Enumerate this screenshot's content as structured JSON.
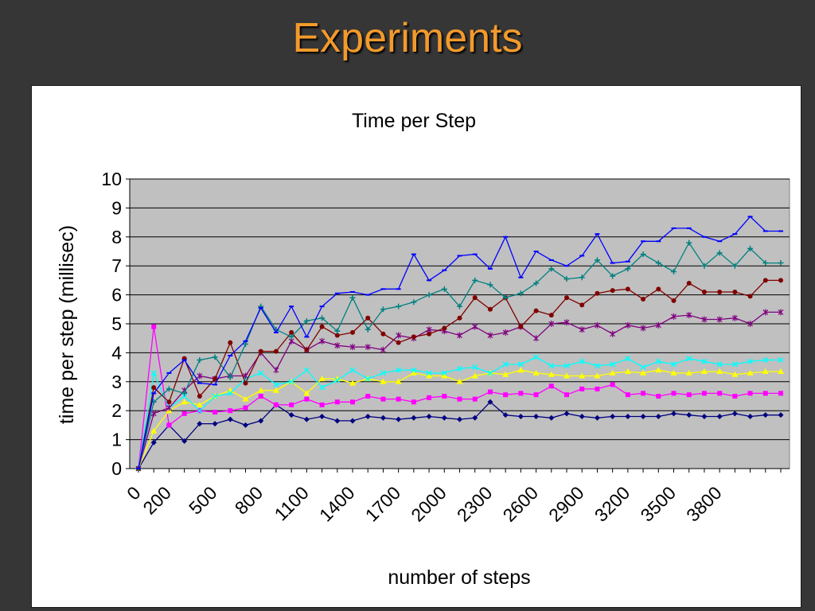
{
  "slide": {
    "title": "Experiments"
  },
  "chart_data": {
    "type": "line",
    "title": "Time per Step",
    "xlabel": "number of steps",
    "ylabel": "time per step (millisec)",
    "ylim": [
      0,
      10
    ],
    "yticks": [
      0,
      1,
      2,
      3,
      4,
      5,
      6,
      7,
      8,
      9,
      10
    ],
    "grid": true,
    "plot_background": "#C0C0C0",
    "x": [
      0,
      100,
      200,
      300,
      400,
      500,
      600,
      700,
      800,
      900,
      1000,
      1100,
      1200,
      1300,
      1400,
      1500,
      1600,
      1700,
      1800,
      1900,
      2000,
      2100,
      2200,
      2300,
      2400,
      2500,
      2600,
      2700,
      2800,
      2900,
      3000,
      3100,
      3200,
      3300,
      3400,
      3500,
      3600,
      3700,
      3800,
      3900,
      4000,
      4100,
      4200
    ],
    "xtick_labels": [
      "0",
      "200",
      "500",
      "800",
      "1100",
      "1400",
      "1700",
      "2000",
      "2300",
      "2600",
      "2900",
      "3200",
      "3500",
      "3800"
    ],
    "xtick_positions": [
      0,
      200,
      500,
      800,
      1100,
      1400,
      1700,
      2000,
      2300,
      2600,
      2900,
      3200,
      3500,
      3800
    ],
    "series": [
      {
        "color": "#000080",
        "marker": "diamond",
        "values": [
          0,
          0.9,
          1.5,
          0.95,
          1.55,
          1.55,
          1.7,
          1.5,
          1.65,
          2.2,
          1.85,
          1.7,
          1.8,
          1.65,
          1.65,
          1.8,
          1.75,
          1.7,
          1.75,
          1.8,
          1.75,
          1.7,
          1.75,
          2.3,
          1.85,
          1.8,
          1.8,
          1.75,
          1.9,
          1.8,
          1.75,
          1.8,
          1.8,
          1.8,
          1.8,
          1.9,
          1.85,
          1.8,
          1.8,
          1.9,
          1.8,
          1.85,
          1.85
        ]
      },
      {
        "color": "#FF00FF",
        "marker": "square",
        "values": [
          0,
          4.9,
          1.5,
          1.9,
          2.0,
          1.95,
          2.0,
          2.1,
          2.5,
          2.2,
          2.2,
          2.4,
          2.2,
          2.3,
          2.3,
          2.5,
          2.4,
          2.4,
          2.3,
          2.45,
          2.5,
          2.4,
          2.4,
          2.65,
          2.55,
          2.6,
          2.55,
          2.85,
          2.55,
          2.75,
          2.75,
          2.9,
          2.55,
          2.6,
          2.5,
          2.6,
          2.55,
          2.6,
          2.6,
          2.5,
          2.6,
          2.6,
          2.6
        ]
      },
      {
        "color": "#FFFF00",
        "marker": "triangle",
        "values": [
          0,
          1.3,
          2.0,
          2.3,
          2.2,
          2.5,
          2.7,
          2.4,
          2.7,
          2.7,
          3.0,
          2.6,
          3.1,
          3.1,
          2.95,
          3.1,
          3.0,
          3.0,
          3.3,
          3.2,
          3.2,
          3.0,
          3.2,
          3.3,
          3.25,
          3.4,
          3.3,
          3.25,
          3.2,
          3.2,
          3.2,
          3.3,
          3.35,
          3.3,
          3.4,
          3.3,
          3.3,
          3.35,
          3.35,
          3.25,
          3.3,
          3.35,
          3.35
        ]
      },
      {
        "color": "#00FFFF",
        "marker": "x",
        "values": [
          0,
          3.3,
          2.1,
          2.5,
          2.0,
          2.5,
          2.6,
          3.1,
          3.3,
          2.9,
          3.0,
          3.4,
          2.8,
          3.05,
          3.4,
          3.1,
          3.3,
          3.4,
          3.4,
          3.3,
          3.3,
          3.45,
          3.5,
          3.3,
          3.6,
          3.6,
          3.85,
          3.55,
          3.55,
          3.7,
          3.55,
          3.6,
          3.8,
          3.5,
          3.7,
          3.6,
          3.8,
          3.7,
          3.6,
          3.6,
          3.7,
          3.75,
          3.75
        ]
      },
      {
        "color": "#800080",
        "marker": "star",
        "values": [
          0,
          1.9,
          2.1,
          2.7,
          3.2,
          3.1,
          3.2,
          3.2,
          4.0,
          3.4,
          4.4,
          4.1,
          4.4,
          4.25,
          4.2,
          4.2,
          4.1,
          4.6,
          4.5,
          4.8,
          4.75,
          4.6,
          4.9,
          4.6,
          4.7,
          4.9,
          4.5,
          5.0,
          5.05,
          4.8,
          4.95,
          4.65,
          4.95,
          4.85,
          4.95,
          5.25,
          5.3,
          5.15,
          5.15,
          5.2,
          5.0,
          5.4,
          5.4
        ]
      },
      {
        "color": "#800000",
        "marker": "circle",
        "values": [
          0,
          2.8,
          2.3,
          3.8,
          2.5,
          3.1,
          4.35,
          2.95,
          4.05,
          4.05,
          4.7,
          4.1,
          4.9,
          4.6,
          4.7,
          5.2,
          4.65,
          4.35,
          4.55,
          4.65,
          4.85,
          5.2,
          5.9,
          5.5,
          5.9,
          4.9,
          5.45,
          5.3,
          5.9,
          5.65,
          6.05,
          6.15,
          6.2,
          5.85,
          6.2,
          5.8,
          6.4,
          6.1,
          6.1,
          6.1,
          5.95,
          6.5,
          6.5
        ]
      },
      {
        "color": "#008080",
        "marker": "plus",
        "values": [
          0,
          2.3,
          2.75,
          2.6,
          3.75,
          3.85,
          3.15,
          4.3,
          5.6,
          4.8,
          4.55,
          5.1,
          5.2,
          4.75,
          5.9,
          4.8,
          5.5,
          5.6,
          5.75,
          6.0,
          6.2,
          5.6,
          6.5,
          6.35,
          5.9,
          6.05,
          6.4,
          6.9,
          6.55,
          6.6,
          7.2,
          6.65,
          6.9,
          7.4,
          7.1,
          6.8,
          7.8,
          7.0,
          7.45,
          7.0,
          7.6,
          7.1,
          7.1
        ]
      },
      {
        "color": "#0000FF",
        "marker": "dash",
        "values": [
          0,
          2.6,
          3.3,
          3.75,
          2.95,
          2.9,
          3.9,
          4.4,
          5.55,
          4.7,
          5.6,
          4.55,
          5.6,
          6.05,
          6.1,
          6.0,
          6.2,
          6.2,
          7.4,
          6.5,
          6.85,
          7.35,
          7.4,
          6.9,
          8.0,
          6.6,
          7.5,
          7.2,
          7.0,
          7.35,
          8.1,
          7.1,
          7.15,
          7.85,
          7.85,
          8.3,
          8.3,
          8.0,
          7.85,
          8.1,
          8.7,
          8.2,
          8.2
        ]
      }
    ]
  }
}
